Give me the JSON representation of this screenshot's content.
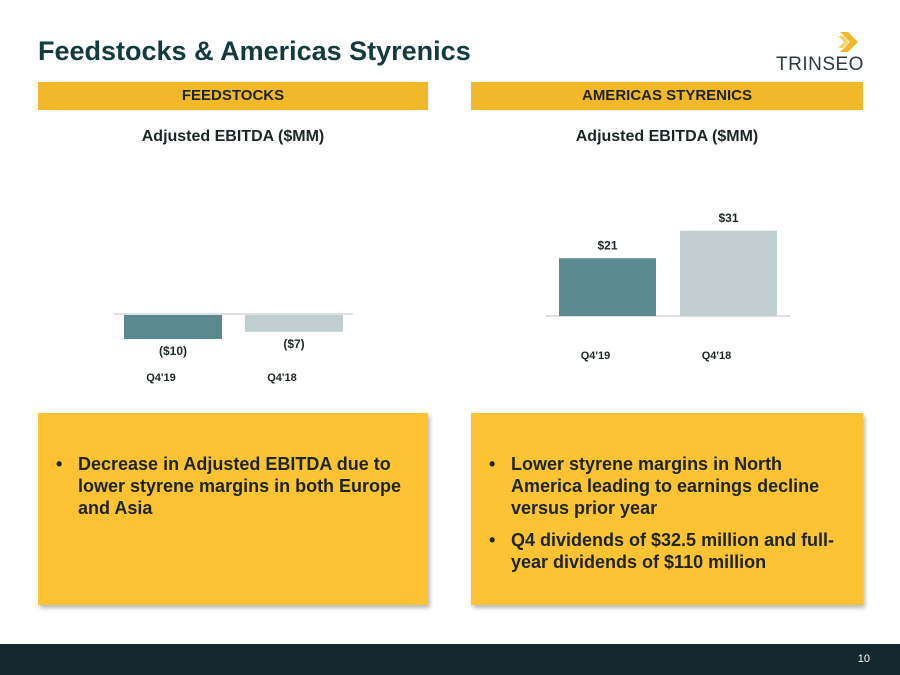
{
  "header": {
    "title": "Feedstocks & Americas Styrenics",
    "logo_text": "TRINSEO",
    "logo_mark_color": "#f2b82b"
  },
  "colors": {
    "accent": "#f2b82b",
    "callout": "#fdc333",
    "bar_current": "#5a8a90",
    "bar_prior": "#c2cfd0",
    "footer": "#14282d"
  },
  "sections": [
    {
      "band_label": "FEEDSTOCKS",
      "bullets": [
        "Decrease in Adjusted EBITDA due to lower styrene margins in both Europe and Asia"
      ]
    },
    {
      "band_label": "AMERICAS STYRENICS",
      "bullets": [
        "Lower styrene margins in North America leading to earnings decline versus prior year",
        "Q4 dividends of $32.5 million and full-year dividends of $110 million"
      ]
    }
  ],
  "chart_data": [
    {
      "type": "bar",
      "title": "Adjusted EBITDA ($MM)",
      "categories": [
        "Q4'19",
        "Q4'18"
      ],
      "values": [
        -10,
        -7
      ],
      "data_labels": [
        "($10)",
        "($7)"
      ],
      "colors": [
        "#5a8a90",
        "#c2cfd0"
      ],
      "grid": false,
      "legend": "none"
    },
    {
      "type": "bar",
      "title": "Adjusted EBITDA ($MM)",
      "categories": [
        "Q4'19",
        "Q4'18"
      ],
      "values": [
        21,
        31
      ],
      "data_labels": [
        "$21",
        "$31"
      ],
      "colors": [
        "#5a8a90",
        "#c2cfd0"
      ],
      "grid": false,
      "legend": "none"
    }
  ],
  "footer": {
    "page_number": "10"
  }
}
